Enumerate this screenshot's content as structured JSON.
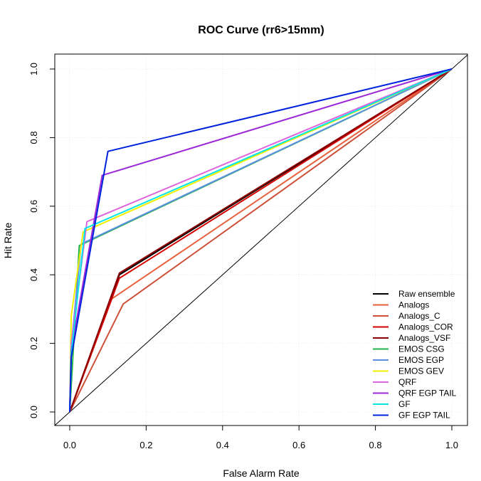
{
  "chart_data": {
    "type": "line",
    "title": "ROC Curve (rr6>15mm)",
    "xlabel": "False Alarm Rate",
    "ylabel": "Hit Rate",
    "xlim": [
      0,
      1
    ],
    "ylim": [
      0,
      1
    ],
    "xticks": [
      "0.0",
      "0.2",
      "0.4",
      "0.6",
      "0.8",
      "1.0"
    ],
    "yticks": [
      "0.0",
      "0.2",
      "0.4",
      "0.6",
      "0.8",
      "1.0"
    ],
    "grid": true,
    "legend_position": "bottom-right",
    "diagonal_reference": true,
    "series": [
      {
        "name": "Raw ensemble",
        "color": "#000000",
        "x": [
          0,
          0.13,
          1
        ],
        "y": [
          0,
          0.4,
          1
        ]
      },
      {
        "name": "Analogs",
        "color": "#e8613d",
        "x": [
          0,
          0.11,
          1
        ],
        "y": [
          0,
          0.33,
          1
        ]
      },
      {
        "name": "Analogs_C",
        "color": "#cd5139",
        "x": [
          0,
          0.14,
          1
        ],
        "y": [
          0,
          0.315,
          1
        ]
      },
      {
        "name": "Analogs_COR",
        "color": "#d40000",
        "x": [
          0,
          0.13,
          1
        ],
        "y": [
          0,
          0.39,
          1
        ]
      },
      {
        "name": "Analogs_VSF",
        "color": "#8b0000",
        "x": [
          0,
          0.13,
          1
        ],
        "y": [
          0,
          0.405,
          1
        ]
      },
      {
        "name": "EMOS CSG",
        "color": "#22b34a",
        "x": [
          0,
          0.025,
          1
        ],
        "y": [
          0,
          0.485,
          1
        ]
      },
      {
        "name": "EMOS EGP",
        "color": "#5b8fe0",
        "x": [
          0,
          0.004,
          0.03,
          1
        ],
        "y": [
          0,
          0.19,
          0.49,
          1
        ]
      },
      {
        "name": "EMOS GEV",
        "color": "#f0f000",
        "x": [
          0,
          0.004,
          0.035,
          1
        ],
        "y": [
          0,
          0.28,
          0.525,
          1
        ]
      },
      {
        "name": "QRF",
        "color": "#dd66dd",
        "x": [
          0,
          0.004,
          0.045,
          1
        ],
        "y": [
          0,
          0.2,
          0.555,
          1
        ]
      },
      {
        "name": "QRF EGP TAIL",
        "color": "#9a28d8",
        "x": [
          0,
          0.004,
          0.085,
          1
        ],
        "y": [
          0,
          0.18,
          0.69,
          1
        ]
      },
      {
        "name": "GF",
        "color": "#00e5e5",
        "x": [
          0,
          0.004,
          0.04,
          1
        ],
        "y": [
          0,
          0.17,
          0.535,
          1
        ]
      },
      {
        "name": "GF EGP TAIL",
        "color": "#0022dd",
        "x": [
          0,
          0.004,
          0.1,
          1
        ],
        "y": [
          0,
          0.16,
          0.76,
          1
        ]
      }
    ]
  }
}
